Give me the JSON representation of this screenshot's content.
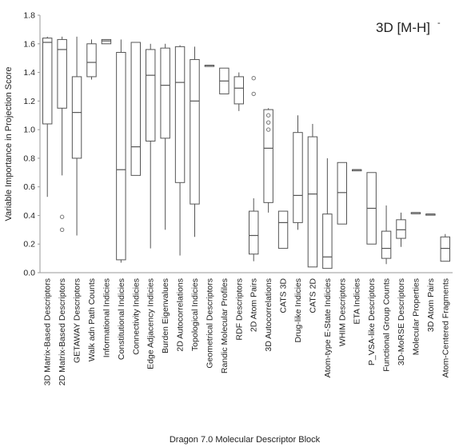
{
  "chart_data": {
    "type": "box",
    "title": "3D [M-H]",
    "title_superscript": "-",
    "xlabel": "Dragon 7.0 Molecular Descriptor Block",
    "ylabel": "Variable Importance in Projection Score",
    "ylim": [
      0,
      1.8
    ],
    "yticks": [
      "0.0",
      "0.2",
      "0.4",
      "0.6",
      "0.8",
      "1.0",
      "1.2",
      "1.4",
      "1.6",
      "1.8"
    ],
    "grid": false,
    "categories": [
      "3D Matrix-Based Descriptors",
      "2D Matrix-Based Descriptors",
      "GETAWAY Descriptors",
      "Walk adn Path Counts",
      "Informational Indicies",
      "Constitutional Indicies",
      "Connectivity Indicies",
      "Edge Adjacency Indicies",
      "Burden Eigenvalues",
      "2D Autocorrelations",
      "Topological Indicies",
      "Geometrical Descriptors",
      "Randic Molecular Profiles",
      "RDF Descriptors",
      "2D Atom Pairs",
      "3D Autocorrelations",
      "CATS 3D",
      "Drug-like Indicies",
      "CATS 2D",
      "Atom-type E-State Indicies",
      "WHIM Descriptors",
      "ETA Indicies",
      "P_VSA-like Descriptors",
      "Functional Group Counts",
      "3D-MoRSE Descriptors",
      "Molecular Properties",
      "3D Atom Pairs",
      "Atom-Centered Fragments"
    ],
    "boxes": [
      {
        "min": 0.53,
        "q1": 1.04,
        "median": 1.61,
        "q3": 1.64,
        "max": 1.65,
        "outliers": []
      },
      {
        "min": 0.68,
        "q1": 1.15,
        "median": 1.56,
        "q3": 1.63,
        "max": 1.65,
        "outliers": [
          0.39,
          0.3
        ]
      },
      {
        "min": 0.26,
        "q1": 0.8,
        "median": 1.12,
        "q3": 1.37,
        "max": 1.65,
        "outliers": []
      },
      {
        "min": 1.35,
        "q1": 1.37,
        "median": 1.47,
        "q3": 1.6,
        "max": 1.63,
        "outliers": []
      },
      {
        "min": 1.6,
        "q1": 1.6,
        "median": 1.62,
        "q3": 1.63,
        "max": 1.63,
        "outliers": []
      },
      {
        "min": 0.07,
        "q1": 0.09,
        "median": 0.72,
        "q3": 1.54,
        "max": 1.63,
        "outliers": []
      },
      {
        "min": 0.68,
        "q1": 0.68,
        "median": 0.88,
        "q3": 1.61,
        "max": 1.61,
        "outliers": []
      },
      {
        "min": 0.17,
        "q1": 0.92,
        "median": 1.38,
        "q3": 1.56,
        "max": 1.6,
        "outliers": []
      },
      {
        "min": 0.3,
        "q1": 0.94,
        "median": 1.31,
        "q3": 1.57,
        "max": 1.6,
        "outliers": []
      },
      {
        "min": 0.12,
        "q1": 0.63,
        "median": 1.33,
        "q3": 1.58,
        "max": 1.59,
        "outliers": []
      },
      {
        "min": 0.25,
        "q1": 0.48,
        "median": 1.2,
        "q3": 1.49,
        "max": 1.58,
        "outliers": []
      },
      {
        "min": 1.45,
        "q1": 1.45,
        "median": 1.45,
        "q3": 1.45,
        "max": 1.45,
        "outliers": []
      },
      {
        "min": 1.25,
        "q1": 1.25,
        "median": 1.34,
        "q3": 1.43,
        "max": 1.43,
        "outliers": []
      },
      {
        "min": 1.13,
        "q1": 1.18,
        "median": 1.29,
        "q3": 1.37,
        "max": 1.4,
        "outliers": []
      },
      {
        "min": 0.08,
        "q1": 0.13,
        "median": 0.26,
        "q3": 0.43,
        "max": 0.52,
        "outliers": [
          1.25,
          1.36
        ]
      },
      {
        "min": 0.42,
        "q1": 0.49,
        "median": 0.87,
        "q3": 1.14,
        "max": 1.15,
        "outliers": [
          1.0,
          1.05,
          1.1
        ]
      },
      {
        "min": 0.17,
        "q1": 0.17,
        "median": 0.35,
        "q3": 0.43,
        "max": 0.43,
        "outliers": []
      },
      {
        "min": 0.3,
        "q1": 0.35,
        "median": 0.54,
        "q3": 0.98,
        "max": 1.1,
        "outliers": []
      },
      {
        "min": 0.04,
        "q1": 0.04,
        "median": 0.55,
        "q3": 0.95,
        "max": 1.04,
        "outliers": []
      },
      {
        "min": 0.03,
        "q1": 0.03,
        "median": 0.11,
        "q3": 0.41,
        "max": 0.8,
        "outliers": []
      },
      {
        "min": 0.34,
        "q1": 0.34,
        "median": 0.56,
        "q3": 0.77,
        "max": 0.77,
        "outliers": []
      },
      {
        "min": 0.72,
        "q1": 0.72,
        "median": 0.72,
        "q3": 0.72,
        "max": 0.72,
        "outliers": []
      },
      {
        "min": 0.2,
        "q1": 0.2,
        "median": 0.45,
        "q3": 0.7,
        "max": 0.7,
        "outliers": []
      },
      {
        "min": 0.06,
        "q1": 0.1,
        "median": 0.17,
        "q3": 0.29,
        "max": 0.47,
        "outliers": []
      },
      {
        "min": 0.18,
        "q1": 0.24,
        "median": 0.3,
        "q3": 0.37,
        "max": 0.42,
        "outliers": []
      },
      {
        "min": 0.42,
        "q1": 0.42,
        "median": 0.42,
        "q3": 0.42,
        "max": 0.42,
        "outliers": []
      },
      {
        "min": 0.41,
        "q1": 0.41,
        "median": 0.41,
        "q3": 0.41,
        "max": 0.41,
        "outliers": []
      },
      {
        "min": 0.08,
        "q1": 0.08,
        "median": 0.17,
        "q3": 0.25,
        "max": 0.27,
        "outliers": []
      }
    ],
    "box_color": "#ffffff",
    "line_color": "#555555"
  }
}
